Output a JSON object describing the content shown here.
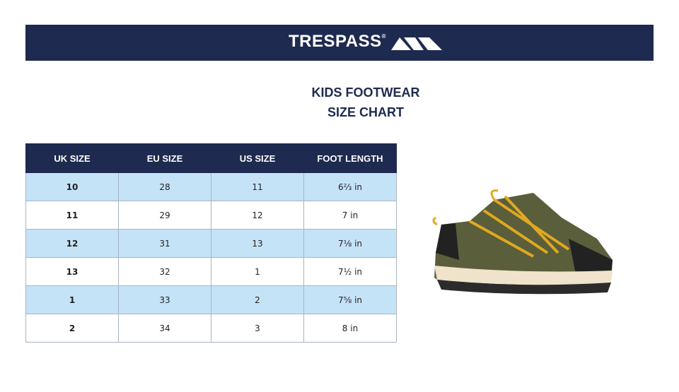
{
  "header": {
    "brand": "TRESPASS",
    "registered": "®"
  },
  "title": {
    "line1": "KIDS FOOTWEAR",
    "line2": "SIZE CHART"
  },
  "table": {
    "columns": [
      "UK SIZE",
      "EU SIZE",
      "US SIZE",
      "FOOT LENGTH"
    ],
    "rows": [
      [
        "10",
        "28",
        "11",
        "6⅔ in"
      ],
      [
        "11",
        "29",
        "12",
        "7 in"
      ],
      [
        "12",
        "31",
        "13",
        "7⅛ in"
      ],
      [
        "13",
        "32",
        "1",
        "7½ in"
      ],
      [
        "1",
        "33",
        "2",
        "7⅝ in"
      ],
      [
        "2",
        "34",
        "3",
        "8 in"
      ]
    ]
  }
}
